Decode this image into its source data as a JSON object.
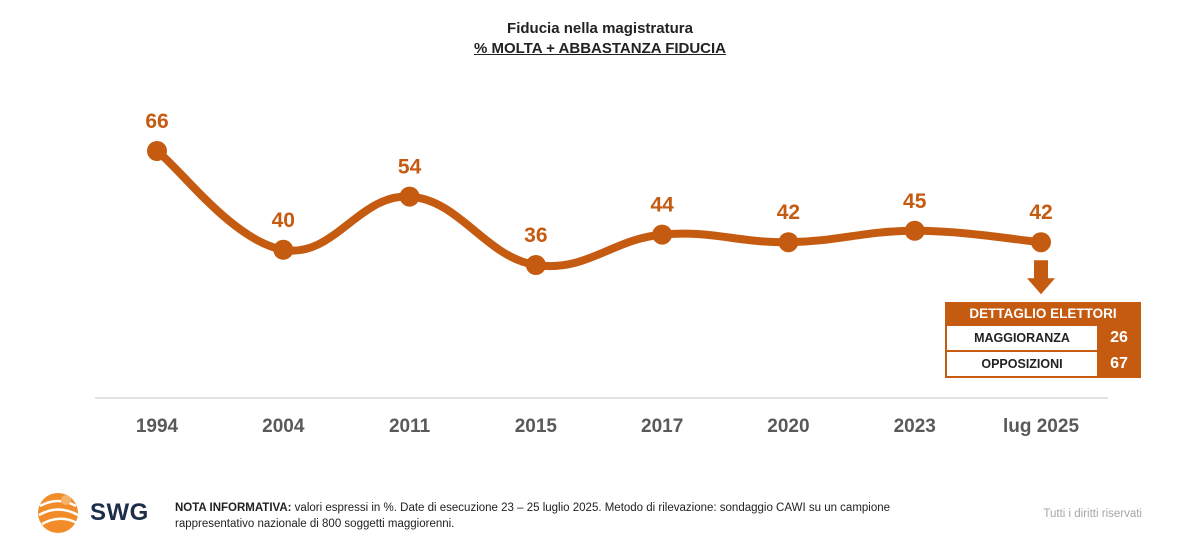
{
  "colors": {
    "accent": "#c55a11",
    "axis_label": "#595959",
    "baseline": "#d9d9d9"
  },
  "chart_data": {
    "type": "line",
    "title": "Fiducia nella magistratura",
    "subtitle": "% MOLTA + ABBASTANZA FIDUCIA",
    "categories": [
      "1994",
      "2004",
      "2011",
      "2015",
      "2017",
      "2020",
      "2023",
      "lug 2025"
    ],
    "values": [
      66,
      40,
      54,
      36,
      44,
      42,
      45,
      42
    ],
    "series": [
      {
        "name": "Fiducia nella magistratura",
        "values": [
          66,
          40,
          54,
          36,
          44,
          42,
          45,
          42
        ]
      }
    ],
    "ylim": [
      0,
      80
    ],
    "xlabel": "",
    "ylabel": "",
    "grid": false,
    "data_labels": true
  },
  "detail": {
    "header": "DETTAGLIO ELETTORI",
    "rows": [
      {
        "label": "MAGGIORANZA",
        "value": "26"
      },
      {
        "label": "OPPOSIZIONI",
        "value": "67"
      }
    ]
  },
  "footer": {
    "logo_text": "SWG",
    "note_label": "NOTA INFORMATIVA:",
    "note_text": " valori espressi in %. Date di esecuzione 23 – 25 luglio 2025. Metodo di rilevazione: sondaggio CAWI su un campione rappresentativo nazionale di 800 soggetti maggiorenni.",
    "rights": "Tutti i diritti riservati"
  }
}
